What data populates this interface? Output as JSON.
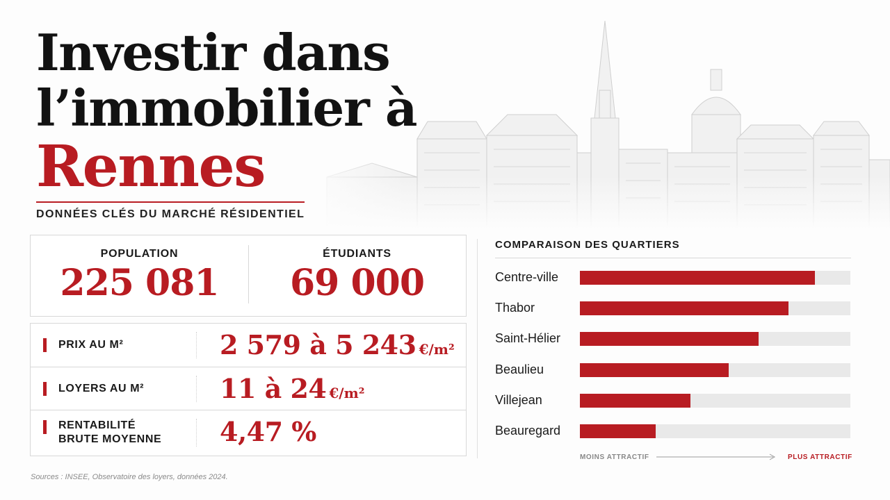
{
  "header": {
    "title_line1": "Investir dans",
    "title_line2": "l’immobilier à",
    "title_city": "Rennes",
    "subtitle": "DONNÉES CLÉS DU MARCHÉ RÉSIDENTIEL"
  },
  "stats": [
    {
      "label": "POPULATION",
      "value": "225 081"
    },
    {
      "label": "ÉTUDIANTS",
      "value": "69 000"
    }
  ],
  "kpis": [
    {
      "label_line1": "PRIX AU M²",
      "label_line2": "",
      "value": "2 579 à 5 243",
      "unit": "€/m²"
    },
    {
      "label_line1": "LOYERS AU M²",
      "label_line2": "",
      "value": "11 à 24",
      "unit": "€/m²"
    },
    {
      "label_line1": "RENTABILITÉ",
      "label_line2": "BRUTE MOYENNE",
      "value": "4,47 %",
      "unit": ""
    }
  ],
  "chart_data": {
    "type": "bar",
    "orientation": "horizontal",
    "title": "COMPARAISON DES QUARTIERS",
    "categories": [
      "Centre-ville",
      "Thabor",
      "Saint-Hélier",
      "Beaulieu",
      "Villejean",
      "Beauregard"
    ],
    "values": [
      0.87,
      0.77,
      0.66,
      0.55,
      0.41,
      0.28
    ],
    "xlim": [
      0,
      1
    ],
    "x_axis_left_label": "MOINS ATTRACTIF",
    "x_axis_right_label": "PLUS ATTRACTIF",
    "bar_color": "#b81c22",
    "track_color": "#e9e9e9"
  },
  "footer": {
    "sources": "Sources : INSEE, Observatoire des loyers, données 2024."
  },
  "colors": {
    "accent": "#b81c22",
    "text": "#121212",
    "border": "#d8d8d8"
  }
}
